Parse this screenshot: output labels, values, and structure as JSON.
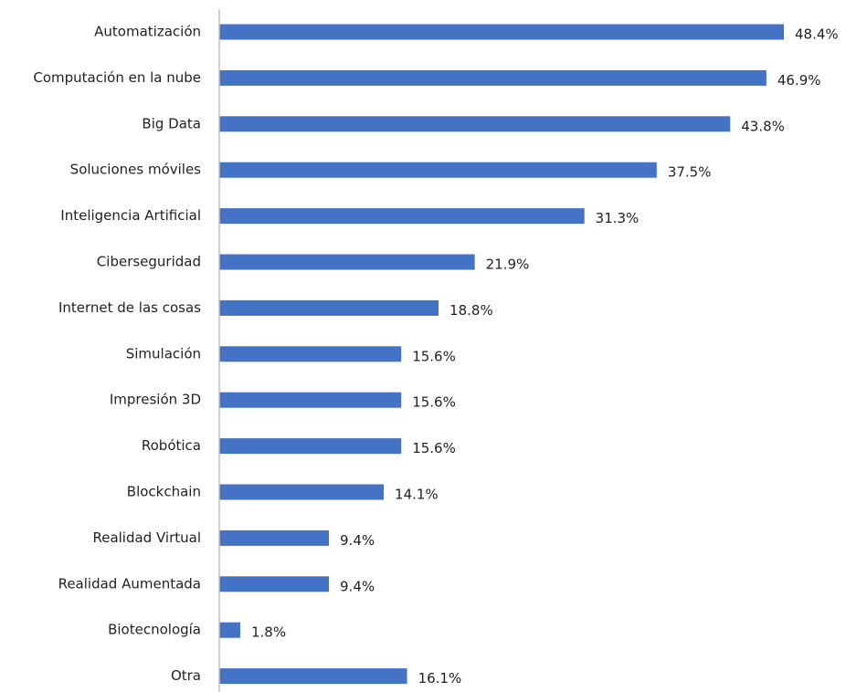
{
  "chart_data": {
    "type": "bar",
    "orientation": "horizontal",
    "color": "#4472c4",
    "categories": [
      "Automatización",
      "Computación en la nube",
      "Big Data",
      "Soluciones móviles",
      "Inteligencia Artificial",
      "Ciberseguridad",
      "Internet de las cosas",
      "Simulación",
      "Impresión 3D",
      "Robótica",
      "Blockchain",
      "Realidad Virtual",
      "Realidad Aumentada",
      "Biotecnología",
      "Otra"
    ],
    "values": [
      48.4,
      46.9,
      43.8,
      37.5,
      31.3,
      21.9,
      18.8,
      15.6,
      15.6,
      15.6,
      14.1,
      9.4,
      9.4,
      1.8,
      16.1
    ],
    "value_labels": [
      "48.4%",
      "46.9%",
      "43.8%",
      "37.5%",
      "31.3%",
      "21.9%",
      "18.8%",
      "15.6%",
      "15.6%",
      "15.6%",
      "14.1%",
      "9.4%",
      "9.4%",
      "1.8%",
      "16.1%"
    ]
  }
}
